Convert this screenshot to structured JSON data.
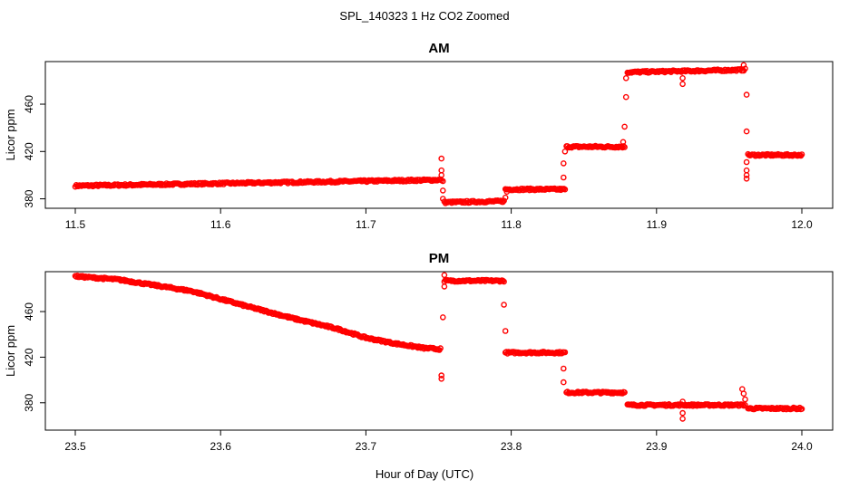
{
  "figure": {
    "title": "SPL_140323  1 Hz CO2 Zoomed",
    "xlabel": "Hour of Day (UTC)"
  },
  "chart_data": [
    {
      "type": "scatter",
      "title": "AM",
      "xlabel": "Hour of Day (UTC)",
      "ylabel": "Licor ppm",
      "xlim": [
        11.5,
        12.0
      ],
      "ylim": [
        372,
        496
      ],
      "xticks": [
        "11.5",
        "11.6",
        "11.7",
        "11.8",
        "11.9",
        "12.0"
      ],
      "yticks": [
        "380",
        "420",
        "460"
      ],
      "grid": false,
      "color": "#ff0000",
      "series": [
        {
          "segments": [
            {
              "x": [
                11.5,
                11.752
              ],
              "y": [
                391,
                396
              ]
            },
            {
              "x": [
                11.754,
                11.795
              ],
              "y": [
                377,
                378
              ]
            },
            {
              "x": [
                11.796,
                11.837
              ],
              "y": [
                388,
                388
              ]
            },
            {
              "x": [
                11.838,
                11.878
              ],
              "y": [
                424,
                424
              ]
            },
            {
              "x": [
                11.88,
                11.96
              ],
              "y": [
                487,
                489
              ]
            },
            {
              "x": [
                11.963,
                12.0
              ],
              "y": [
                417,
                417
              ]
            }
          ],
          "points": [
            [
              11.752,
              414
            ],
            [
              11.752,
              404
            ],
            [
              11.752,
              400
            ],
            [
              11.753,
              395
            ],
            [
              11.753,
              387
            ],
            [
              11.753,
              380
            ],
            [
              11.796,
              381
            ],
            [
              11.797,
              386
            ],
            [
              11.836,
              398
            ],
            [
              11.836,
              410
            ],
            [
              11.837,
              420
            ],
            [
              11.877,
              428
            ],
            [
              11.878,
              441
            ],
            [
              11.879,
              466
            ],
            [
              11.879,
              482
            ],
            [
              11.918,
              477
            ],
            [
              11.918,
              482
            ],
            [
              11.96,
              493
            ],
            [
              11.961,
              490
            ],
            [
              11.962,
              468
            ],
            [
              11.962,
              437
            ],
            [
              11.962,
              411
            ],
            [
              11.962,
              404
            ],
            [
              11.962,
              400
            ],
            [
              11.962,
              397
            ]
          ]
        }
      ]
    },
    {
      "type": "scatter",
      "title": "PM",
      "xlabel": "Hour of Day (UTC)",
      "ylabel": "Licor ppm",
      "xlim": [
        23.5,
        24.0
      ],
      "ylim": [
        356,
        495
      ],
      "xticks": [
        "23.5",
        "23.6",
        "23.7",
        "23.8",
        "23.9",
        "24.0"
      ],
      "yticks": [
        "380",
        "420",
        "460"
      ],
      "grid": false,
      "color": "#ff0000",
      "series": [
        {
          "curve": [
            [
              23.5,
              491
            ],
            [
              23.53,
              488
            ],
            [
              23.56,
              482
            ],
            [
              23.58,
              478
            ],
            [
              23.6,
              471
            ],
            [
              23.62,
              464
            ],
            [
              23.65,
              454
            ],
            [
              23.68,
              445
            ],
            [
              23.7,
              437
            ],
            [
              23.72,
              432
            ],
            [
              23.74,
              428
            ],
            [
              23.752,
              427
            ]
          ],
          "segments": [
            {
              "x": [
                23.754,
                23.795
              ],
              "y": [
                487,
                487
              ]
            },
            {
              "x": [
                23.796,
                23.837
              ],
              "y": [
                424,
                424
              ]
            },
            {
              "x": [
                23.838,
                23.878
              ],
              "y": [
                389,
                389
              ]
            },
            {
              "x": [
                23.88,
                23.96
              ],
              "y": [
                378,
                378
              ]
            },
            {
              "x": [
                23.963,
                24.0
              ],
              "y": [
                375,
                375
              ]
            }
          ],
          "points": [
            [
              23.752,
              404
            ],
            [
              23.752,
              401
            ],
            [
              23.753,
              455
            ],
            [
              23.754,
              492
            ],
            [
              23.754,
              482
            ],
            [
              23.795,
              466
            ],
            [
              23.796,
              443
            ],
            [
              23.836,
              410
            ],
            [
              23.836,
              398
            ],
            [
              23.918,
              366
            ],
            [
              23.918,
              371
            ],
            [
              23.918,
              381
            ],
            [
              23.959,
              392
            ],
            [
              23.96,
              388
            ],
            [
              23.961,
              383
            ],
            [
              23.961,
              378
            ]
          ]
        }
      ]
    }
  ]
}
